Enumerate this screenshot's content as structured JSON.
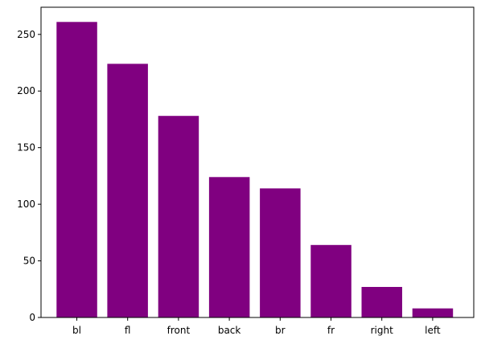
{
  "chart_data": {
    "type": "bar",
    "title": "",
    "xlabel": "",
    "ylabel": "",
    "categories": [
      "bl",
      "fl",
      "front",
      "back",
      "br",
      "fr",
      "right",
      "left"
    ],
    "values": [
      261,
      224,
      178,
      124,
      114,
      64,
      27,
      8
    ],
    "ylim": [
      0,
      274
    ],
    "yticks": [
      0,
      50,
      100,
      150,
      200,
      250
    ],
    "bar_color": "#800080",
    "grid": false,
    "legend": "none"
  }
}
